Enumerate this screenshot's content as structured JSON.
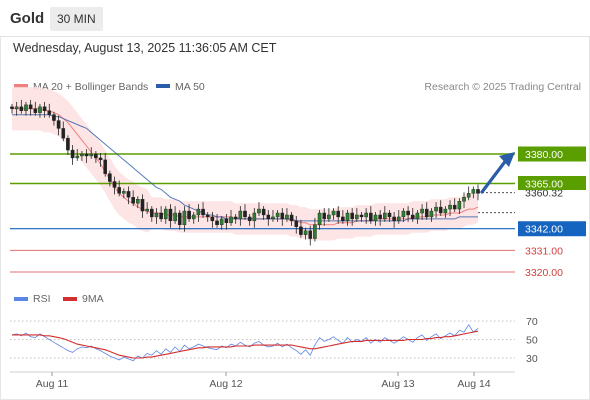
{
  "header": {
    "title": "Gold",
    "timeframe": "30 MIN",
    "datetime": "Wednesday, August 13, 2025 11:36:05 AM CET"
  },
  "legend": {
    "items": [
      {
        "label": "MA 20 + Bollinger Bands",
        "color": "#f08080"
      },
      {
        "label": "MA 50",
        "color": "#2a5ca8"
      }
    ],
    "copyright": "Research © 2025 Trading Central"
  },
  "rsi_legend": {
    "items": [
      {
        "label": "RSI",
        "color": "#5b86e5"
      },
      {
        "label": "9MA",
        "color": "#d32f2f"
      }
    ]
  },
  "chart_data": [
    {
      "type": "candlestick",
      "title": "",
      "price_levels": [
        {
          "value": 3380.0,
          "label": "3380.00",
          "color": "#5a9e00",
          "role": "target"
        },
        {
          "value": 3365.0,
          "label": "3365.00",
          "color": "#5a9e00",
          "role": "pivot"
        },
        {
          "value": 3342.0,
          "label": "3342.00",
          "color": "#1565c0",
          "role": "support"
        },
        {
          "value": 3331.0,
          "label": "3331.00",
          "color": "#e07070",
          "role": "resistance"
        },
        {
          "value": 3320.0,
          "label": "3320.00",
          "color": "#e07070",
          "role": "resistance"
        }
      ],
      "last_price": {
        "value": 3360.32,
        "label": "3360.32"
      },
      "x_ticks": [
        "Aug 11",
        "Aug 12",
        "Aug 13",
        "Aug 14"
      ],
      "close_series": [
        3403,
        3404,
        3402,
        3405,
        3403,
        3401,
        3404,
        3402,
        3400,
        3397,
        3393,
        3388,
        3382,
        3378,
        3379,
        3380,
        3379,
        3380,
        3378,
        3377,
        3370,
        3366,
        3363,
        3360,
        3361,
        3358,
        3355,
        3357,
        3351,
        3352,
        3348,
        3350,
        3347,
        3352,
        3346,
        3350,
        3344,
        3351,
        3347,
        3349,
        3352,
        3349,
        3348,
        3346,
        3344,
        3347,
        3345,
        3348,
        3347,
        3351,
        3348,
        3346,
        3350,
        3352,
        3349,
        3347,
        3348,
        3350,
        3347,
        3349,
        3346,
        3343,
        3339,
        3341,
        3337,
        3344,
        3350,
        3347,
        3349,
        3351,
        3348,
        3346,
        3350,
        3347,
        3349,
        3348,
        3350,
        3346,
        3349,
        3347,
        3350,
        3348,
        3346,
        3348,
        3351,
        3349,
        3347,
        3350,
        3352,
        3348,
        3351,
        3353,
        3350,
        3352,
        3354,
        3352,
        3356,
        3358,
        3360,
        3362,
        3360
      ],
      "ma20_series": [
        3403,
        3403,
        3403,
        3403,
        3403,
        3403,
        3403,
        3402,
        3402,
        3401,
        3400,
        3398,
        3396,
        3393,
        3390,
        3387,
        3384,
        3381,
        3378,
        3375,
        3371,
        3367,
        3363,
        3360,
        3358,
        3356,
        3355,
        3353,
        3352,
        3351,
        3350,
        3350,
        3350,
        3349,
        3349,
        3349,
        3348,
        3348,
        3348,
        3348,
        3348,
        3348,
        3348,
        3348,
        3348,
        3348,
        3348,
        3348,
        3347,
        3347,
        3347,
        3347,
        3347,
        3347,
        3347,
        3347,
        3347,
        3347,
        3347,
        3347,
        3346,
        3346,
        3345,
        3345,
        3344,
        3344,
        3344,
        3344,
        3344,
        3344,
        3345,
        3345,
        3345,
        3345,
        3346,
        3346,
        3346,
        3346,
        3347,
        3347,
        3347,
        3347,
        3347,
        3347,
        3347,
        3347,
        3348,
        3348,
        3348,
        3348,
        3349,
        3349,
        3349,
        3349,
        3350,
        3350,
        3350,
        3351,
        3352,
        3352,
        3353
      ],
      "ma50_series": [
        3400,
        3400,
        3400,
        3400,
        3400,
        3400,
        3400,
        3400,
        3400,
        3399,
        3399,
        3398,
        3397,
        3396,
        3395,
        3394,
        3393,
        3391,
        3389,
        3387,
        3385,
        3383,
        3381,
        3379,
        3377,
        3375,
        3373,
        3371,
        3369,
        3367,
        3365,
        3363,
        3362,
        3360,
        3358,
        3357,
        3356,
        3354,
        3353,
        3352,
        3351,
        3350,
        3349,
        3349,
        3348,
        3348,
        3347,
        3347,
        3347,
        3347,
        3347,
        3347,
        3347,
        3347,
        3347,
        3347,
        3347,
        3347,
        3347,
        3347,
        3347,
        3346,
        3346,
        3346,
        3346,
        3346,
        3346,
        3346,
        3346,
        3346,
        3346,
        3346,
        3346,
        3346,
        3346,
        3346,
        3346,
        3346,
        3346,
        3346,
        3346,
        3346,
        3346,
        3346,
        3346,
        3347,
        3347,
        3347,
        3347,
        3347,
        3347,
        3347,
        3347,
        3347,
        3347,
        3347,
        3348,
        3348,
        3348,
        3348,
        3348
      ],
      "bollinger_width": 8
    },
    {
      "type": "line",
      "title": "",
      "y_ticks": [
        70,
        50,
        30
      ],
      "ylim": [
        20,
        80
      ],
      "series": [
        {
          "name": "RSI",
          "color": "#5b86e5",
          "values": [
            55,
            56,
            54,
            57,
            53,
            52,
            56,
            53,
            50,
            47,
            44,
            41,
            38,
            36,
            40,
            42,
            41,
            43,
            40,
            38,
            35,
            32,
            30,
            28,
            31,
            29,
            27,
            32,
            30,
            35,
            33,
            38,
            34,
            40,
            36,
            42,
            37,
            44,
            40,
            42,
            45,
            43,
            41,
            40,
            39,
            43,
            41,
            45,
            43,
            47,
            44,
            42,
            46,
            48,
            44,
            42,
            43,
            46,
            42,
            45,
            41,
            38,
            34,
            39,
            33,
            44,
            52,
            48,
            50,
            53,
            49,
            46,
            52,
            47,
            50,
            48,
            52,
            46,
            50,
            47,
            52,
            49,
            46,
            49,
            53,
            50,
            47,
            52,
            55,
            49,
            53,
            56,
            51,
            54,
            57,
            54,
            60,
            58,
            66,
            58,
            62
          ]
        },
        {
          "name": "9MA",
          "color": "#d32f2f",
          "values": [
            55,
            55,
            55,
            55,
            55,
            55,
            55,
            54,
            54,
            53,
            52,
            51,
            49,
            47,
            45,
            44,
            43,
            42,
            41,
            40,
            39,
            37,
            35,
            33,
            32,
            31,
            30,
            30,
            30,
            31,
            31,
            32,
            33,
            34,
            35,
            36,
            37,
            38,
            39,
            40,
            41,
            41,
            42,
            42,
            42,
            42,
            42,
            42,
            43,
            43,
            43,
            43,
            44,
            44,
            44,
            44,
            44,
            44,
            44,
            44,
            44,
            43,
            42,
            41,
            40,
            40,
            41,
            42,
            43,
            44,
            45,
            46,
            47,
            48,
            48,
            48,
            49,
            49,
            49,
            49,
            49,
            49,
            49,
            49,
            49,
            50,
            50,
            50,
            50,
            51,
            51,
            52,
            52,
            53,
            53,
            54,
            55,
            56,
            57,
            58,
            59
          ]
        }
      ]
    }
  ]
}
